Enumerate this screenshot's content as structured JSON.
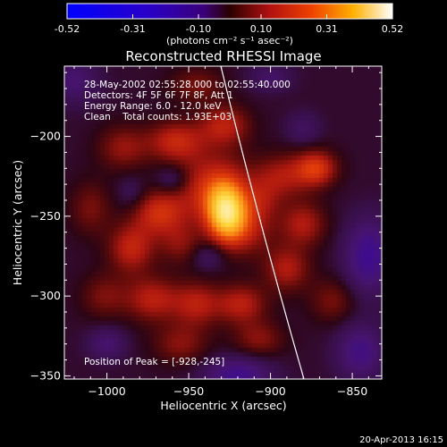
{
  "colorbar": {
    "ticks": [
      "-0.52",
      "-0.31",
      "-0.10",
      "0.10",
      "0.31",
      "0.52"
    ],
    "unit_label": "(photons cm⁻² s⁻¹ asec⁻²)"
  },
  "chart_data": {
    "type": "heatmap",
    "title": "Reconstructed RHESSI Image",
    "xlabel": "Heliocentric X (arcsec)",
    "ylabel": "Heliocentric Y (arcsec)",
    "xlim": [
      -1026,
      -832
    ],
    "ylim": [
      -352,
      -156
    ],
    "xticks": [
      -1000,
      -950,
      -900,
      -850
    ],
    "yticks": [
      -200,
      -250,
      -300,
      -350
    ],
    "xtick_labels": [
      "−1000",
      "−950",
      "−900",
      "−850"
    ],
    "ytick_labels": [
      "−200",
      "−250",
      "−300",
      "−350"
    ],
    "zlim": [
      -0.52,
      0.52
    ],
    "grid": false,
    "annotations": [
      "28-May-2002 02:55:28.000 to 02:55:40.000",
      "Detectors: 4F 5F 6F 7F 8F, Att 1",
      "Energy Range: 6.0 - 12.0 keV",
      "Clean    Total counts: 1.93E+03",
      "Position of Peak = [-928,-245]"
    ],
    "peak": {
      "x": -928,
      "y": -245,
      "value": 0.52
    },
    "blobs": [
      {
        "x": -927,
        "y": -247,
        "sx": 8,
        "sy": 12,
        "v": 0.32
      },
      {
        "x": -935,
        "y": -233,
        "sx": 16,
        "sy": 16,
        "v": 0.16
      },
      {
        "x": -916,
        "y": -258,
        "sx": 12,
        "sy": 12,
        "v": 0.12
      },
      {
        "x": -968,
        "y": -248,
        "sx": 11,
        "sy": 10,
        "v": 0.15
      },
      {
        "x": -985,
        "y": -270,
        "sx": 10,
        "sy": 11,
        "v": 0.14
      },
      {
        "x": -972,
        "y": -302,
        "sx": 12,
        "sy": 10,
        "v": 0.13
      },
      {
        "x": -945,
        "y": -305,
        "sx": 10,
        "sy": 10,
        "v": 0.12
      },
      {
        "x": -918,
        "y": -305,
        "sx": 11,
        "sy": 9,
        "v": 0.13
      },
      {
        "x": -890,
        "y": -283,
        "sx": 10,
        "sy": 10,
        "v": 0.12
      },
      {
        "x": -880,
        "y": -255,
        "sx": 10,
        "sy": 10,
        "v": 0.12
      },
      {
        "x": -893,
        "y": -225,
        "sx": 12,
        "sy": 10,
        "v": 0.11
      },
      {
        "x": -872,
        "y": -220,
        "sx": 9,
        "sy": 8,
        "v": 0.17
      },
      {
        "x": -958,
        "y": -203,
        "sx": 12,
        "sy": 9,
        "v": 0.14
      },
      {
        "x": -928,
        "y": -193,
        "sx": 11,
        "sy": 9,
        "v": 0.13
      },
      {
        "x": -990,
        "y": -207,
        "sx": 11,
        "sy": 10,
        "v": 0.1
      },
      {
        "x": -1010,
        "y": -245,
        "sx": 9,
        "sy": 12,
        "v": 0.08
      },
      {
        "x": -1002,
        "y": -300,
        "sx": 10,
        "sy": 10,
        "v": 0.08
      },
      {
        "x": -955,
        "y": -330,
        "sx": 12,
        "sy": 9,
        "v": 0.09
      },
      {
        "x": -907,
        "y": -327,
        "sx": 11,
        "sy": 8,
        "v": 0.09
      },
      {
        "x": -862,
        "y": -303,
        "sx": 10,
        "sy": 10,
        "v": 0.08
      },
      {
        "x": -945,
        "y": -168,
        "sx": 12,
        "sy": 8,
        "v": 0.08
      },
      {
        "x": -955,
        "y": -268,
        "sx": 9,
        "sy": 9,
        "v": 0.08
      },
      {
        "x": -905,
        "y": -240,
        "sx": 8,
        "sy": 9,
        "v": 0.06
      },
      {
        "x": -920,
        "y": -350,
        "sx": 14,
        "sy": 8,
        "v": -0.16
      },
      {
        "x": -840,
        "y": -275,
        "sx": 10,
        "sy": 16,
        "v": -0.17
      },
      {
        "x": -845,
        "y": -335,
        "sx": 10,
        "sy": 12,
        "v": -0.14
      },
      {
        "x": -1020,
        "y": -165,
        "sx": 10,
        "sy": 10,
        "v": -0.1
      },
      {
        "x": -960,
        "y": -227,
        "sx": 7,
        "sy": 6,
        "v": -0.08
      },
      {
        "x": -938,
        "y": -275,
        "sx": 7,
        "sy": 6,
        "v": -0.07
      },
      {
        "x": -1000,
        "y": -330,
        "sx": 8,
        "sy": 7,
        "v": -0.1
      },
      {
        "x": -900,
        "y": -163,
        "sx": 9,
        "sy": 6,
        "v": -0.08
      },
      {
        "x": -880,
        "y": -195,
        "sx": 7,
        "sy": 7,
        "v": -0.07
      },
      {
        "x": -985,
        "y": -235,
        "sx": 6,
        "sy": 7,
        "v": -0.05
      }
    ]
  },
  "footer": {
    "timestamp": "20-Apr-2013 16:15"
  }
}
